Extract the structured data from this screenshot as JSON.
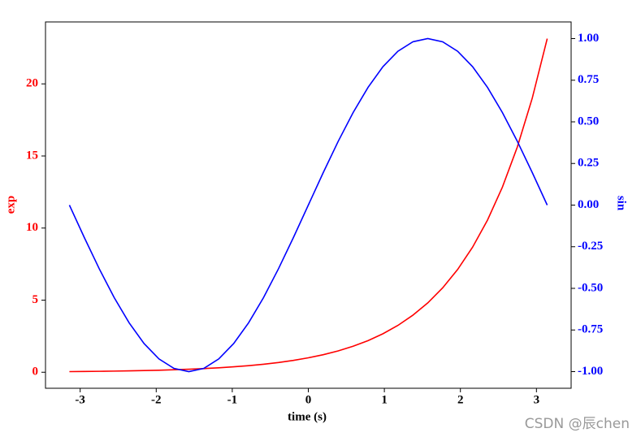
{
  "chart_data": {
    "type": "line",
    "xlabel": "time (s)",
    "ylabel": "exp",
    "y2label": "sin",
    "ylabel_color": "#ff0000",
    "y2label_color": "#0000ff",
    "x": [
      -3.1416,
      -2.9452,
      -2.7489,
      -2.5525,
      -2.3562,
      -2.1598,
      -1.9635,
      -1.7671,
      -1.5708,
      -1.3744,
      -1.1781,
      -0.9817,
      -0.7854,
      -0.589,
      -0.3927,
      -0.1963,
      0,
      0.1963,
      0.3927,
      0.589,
      0.7854,
      0.9817,
      1.1781,
      1.3744,
      1.5708,
      1.7671,
      1.9635,
      2.1598,
      2.3562,
      2.5525,
      2.7489,
      2.9452,
      3.1416
    ],
    "series": [
      {
        "name": "exp",
        "color": "#ff0000",
        "axis": "y",
        "values": [
          0.0432,
          0.0526,
          0.064,
          0.0779,
          0.0948,
          0.1153,
          0.1404,
          0.1708,
          0.2079,
          0.2529,
          0.3078,
          0.3746,
          0.4559,
          0.5548,
          0.6752,
          0.8217,
          1,
          1.217,
          1.4811,
          1.8025,
          2.1933,
          2.6693,
          3.2485,
          3.9534,
          4.8105,
          5.8544,
          7.1248,
          8.6708,
          10.5507,
          12.841,
          15.627,
          19.017,
          23.141
        ]
      },
      {
        "name": "sin",
        "color": "#0000ff",
        "axis": "y2",
        "values": [
          0,
          -0.1951,
          -0.3827,
          -0.5556,
          -0.7071,
          -0.8315,
          -0.9239,
          -0.9808,
          -1,
          -0.9808,
          -0.9239,
          -0.8315,
          -0.7071,
          -0.5556,
          -0.3827,
          -0.1951,
          0,
          0.1951,
          0.3827,
          0.5556,
          0.7071,
          0.8315,
          0.9239,
          0.9808,
          1,
          0.9808,
          0.9239,
          0.8315,
          0.7071,
          0.5556,
          0.3827,
          0.1951,
          0
        ]
      }
    ],
    "xlim": [
      -3.456,
      3.456
    ],
    "xticks": [
      -3,
      -2,
      -1,
      0,
      1,
      2,
      3
    ],
    "ylim": [
      -1.112,
      24.297
    ],
    "yticks": [
      0,
      5,
      10,
      15,
      20
    ],
    "y2lim": [
      -1.1,
      1.1
    ],
    "y2ticks": [
      {
        "value": -1,
        "label": "-1.00"
      },
      {
        "value": -0.75,
        "label": "-0.75"
      },
      {
        "value": -0.5,
        "label": "-0.50"
      },
      {
        "value": -0.25,
        "label": "-0.25"
      },
      {
        "value": 0,
        "label": "0.00"
      },
      {
        "value": 0.25,
        "label": "0.25"
      },
      {
        "value": 0.5,
        "label": "0.50"
      },
      {
        "value": 0.75,
        "label": "0.75"
      },
      {
        "value": 1,
        "label": "1.00"
      }
    ],
    "grid": false,
    "watermark": "CSDN @辰chen"
  }
}
